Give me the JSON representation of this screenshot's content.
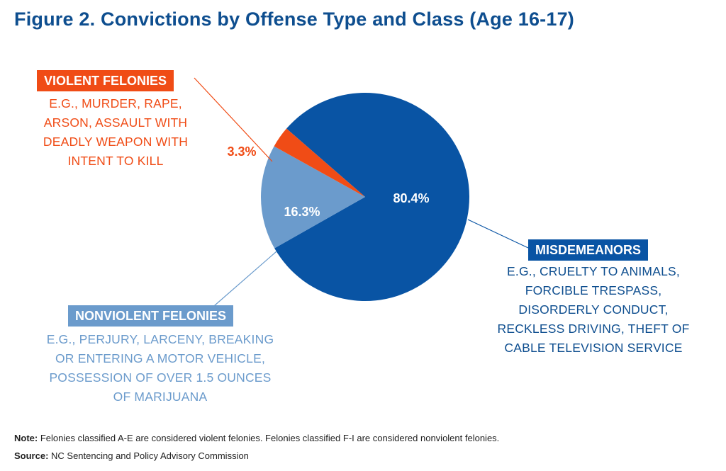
{
  "title": "Figure 2. Convictions by Offense Type and Class (Age 16-17)",
  "colors": {
    "title": "#0e4e8f",
    "violent": "#f04c16",
    "nonviolent": "#6b9bcc",
    "misdemeanor": "#0954a4",
    "misdemeanor_text": "#0e4e8f"
  },
  "chart_data": {
    "type": "pie",
    "slices": [
      {
        "label": "MISDEMEANORS",
        "value": 80.4,
        "value_label": "80.4%",
        "color": "#0954a4"
      },
      {
        "label": "NONVIOLENT FELONIES",
        "value": 16.3,
        "value_label": "16.3%",
        "color": "#6b9bcc"
      },
      {
        "label": "VIOLENT FELONIES",
        "value": 3.3,
        "value_label": "3.3%",
        "color": "#f04c16"
      }
    ]
  },
  "categories": {
    "violent": {
      "heading": "VIOLENT FELONIES",
      "lines": [
        "E.G., MURDER, RAPE,",
        "ARSON, ASSAULT WITH",
        "DEADLY WEAPON WITH",
        "INTENT TO KILL"
      ]
    },
    "nonviolent": {
      "heading": "NONVIOLENT FELONIES",
      "lines": [
        "E.G., PERJURY, LARCENY, BREAKING",
        "OR ENTERING A MOTOR VEHICLE,",
        "POSSESSION OF OVER 1.5 OUNCES",
        "OF MARIJUANA"
      ]
    },
    "misdemeanor": {
      "heading": "MISDEMEANORS",
      "lines": [
        "E.G., CRUELTY TO ANIMALS,",
        "FORCIBLE TRESPASS,",
        "DISORDERLY CONDUCT,",
        "RECKLESS DRIVING, THEFT OF",
        "CABLE TELEVISION SERVICE"
      ]
    }
  },
  "footer": {
    "note_label": "Note:",
    "note_text": " Felonies classified A-E are considered violent felonies. Felonies classified F-I are considered nonviolent felonies.",
    "source_label": "Source:",
    "source_text": " NC Sentencing and Policy Advisory Commission"
  }
}
